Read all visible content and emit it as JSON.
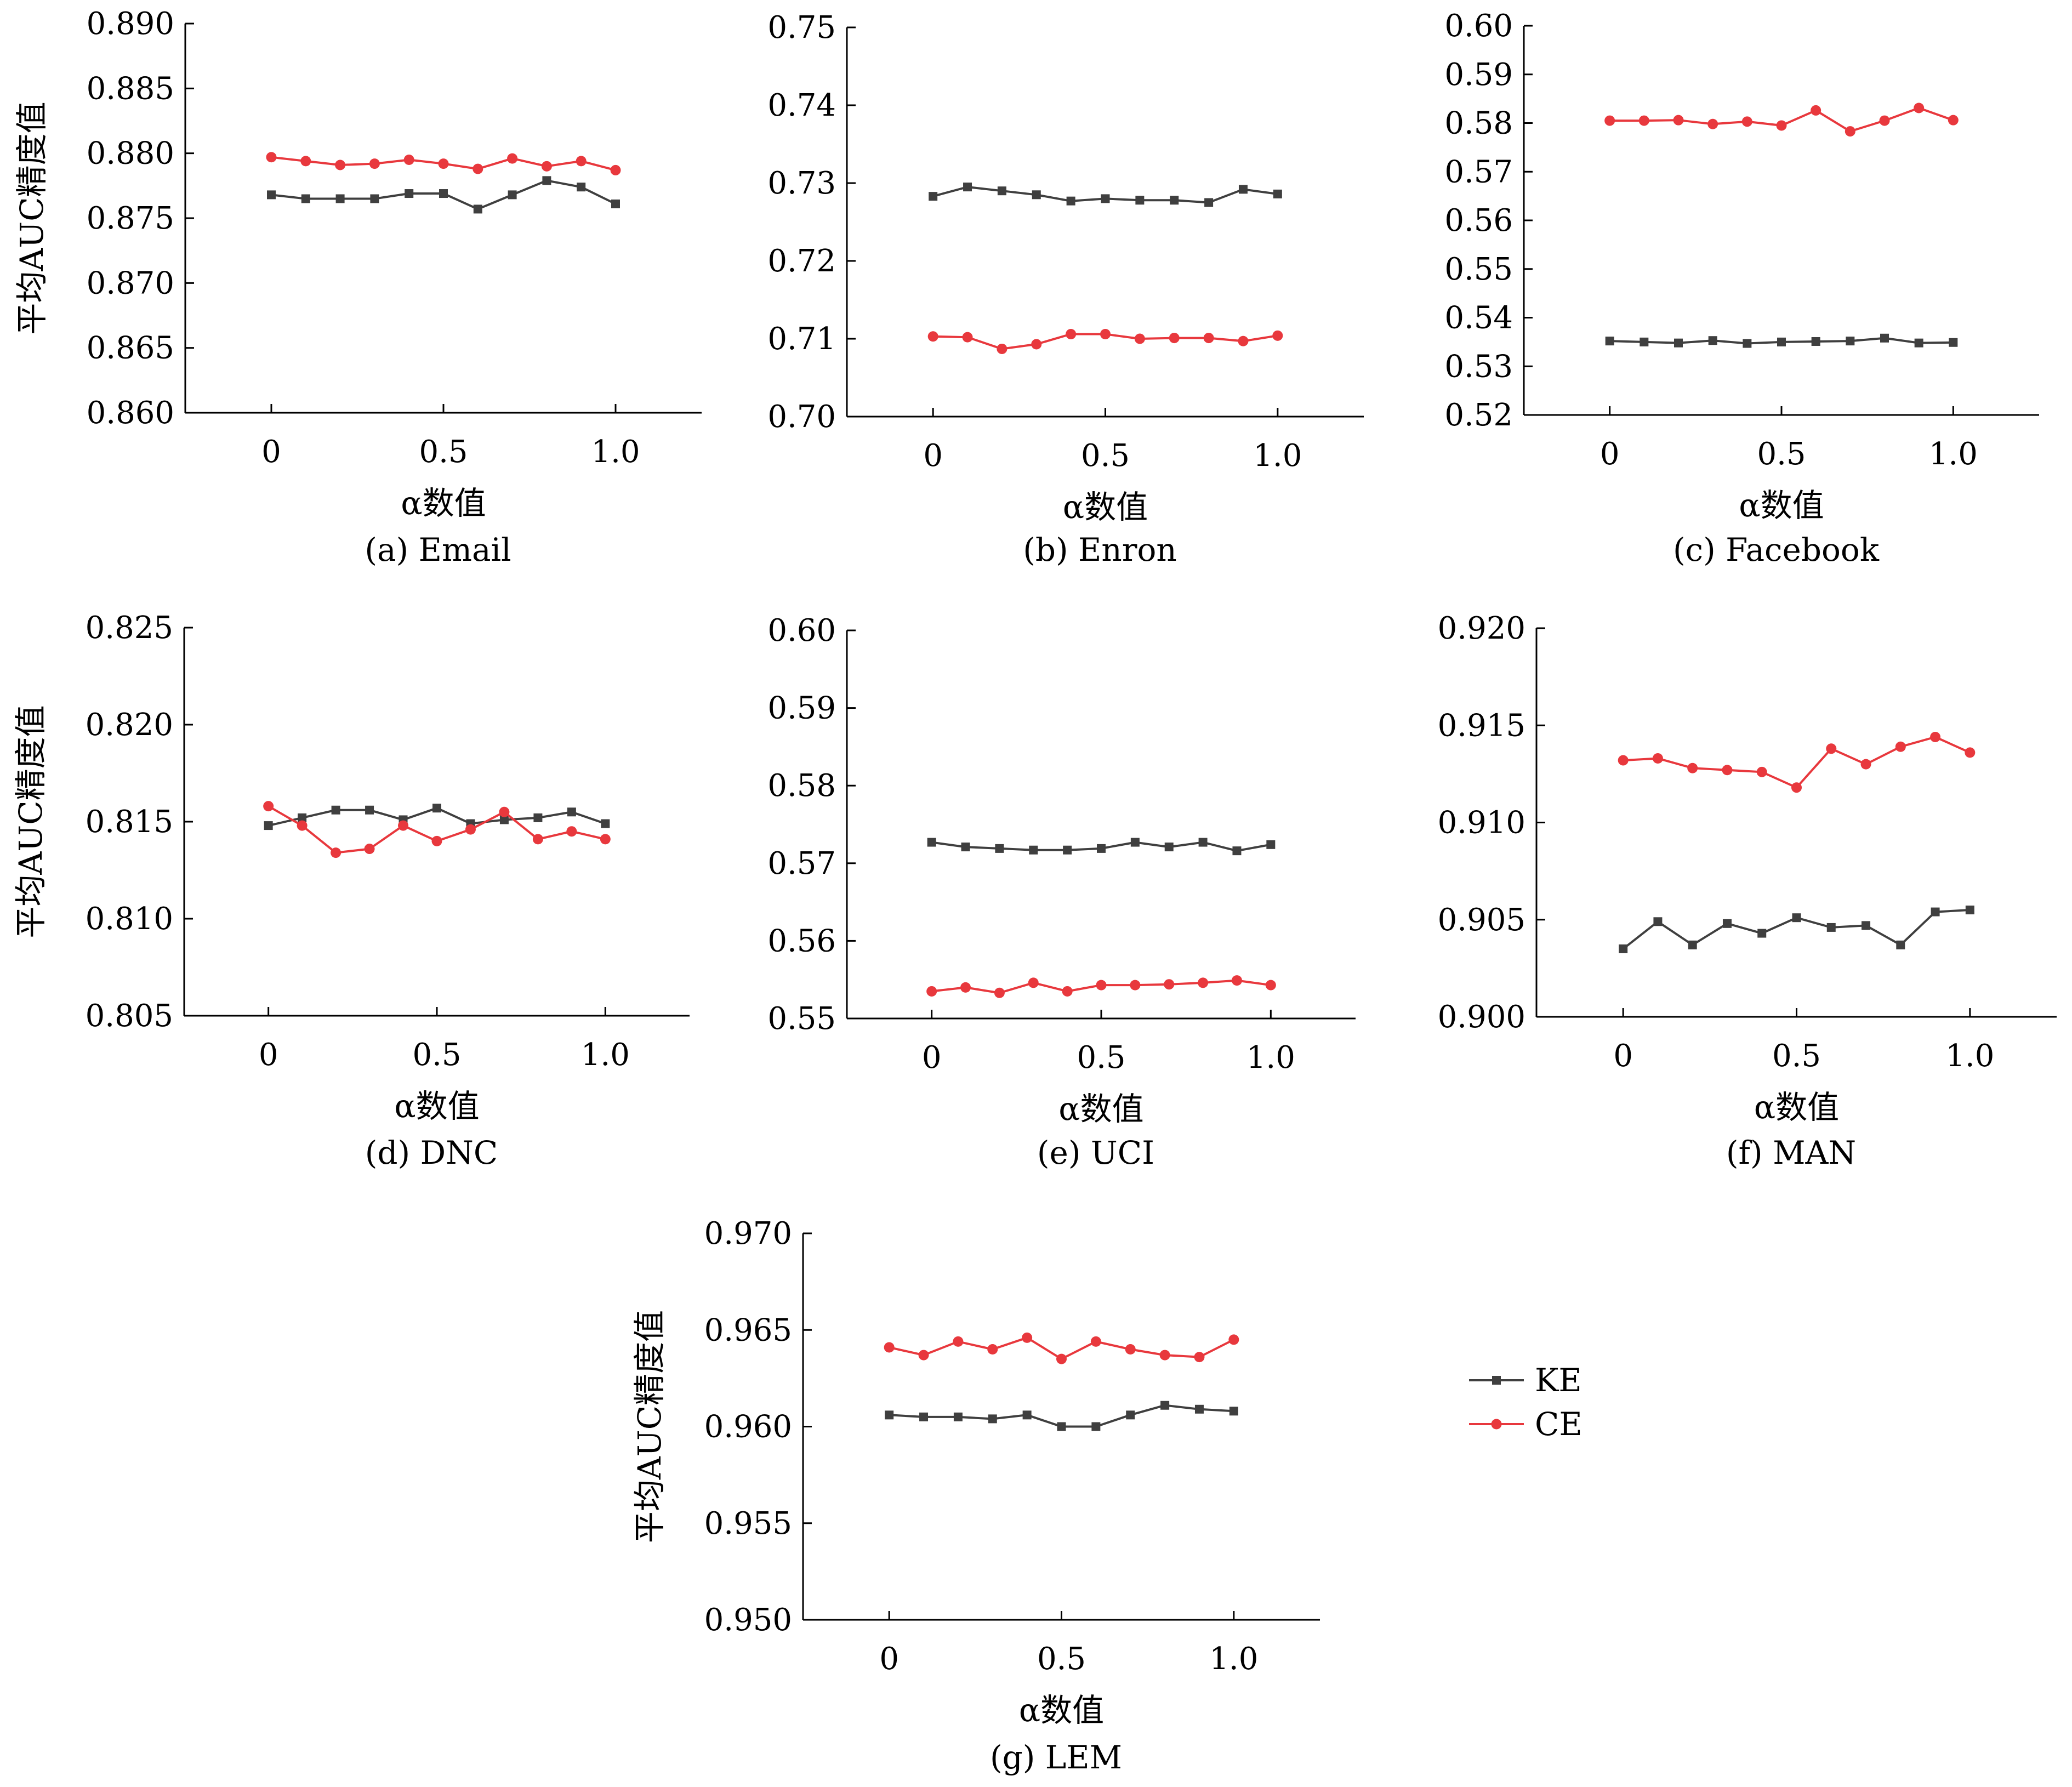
{
  "colors": {
    "KE": "#3f3f3f",
    "CE": "#e8383d",
    "axis": "#000000"
  },
  "legend": [
    {
      "name": "KE",
      "marker": "square"
    },
    {
      "name": "CE",
      "marker": "circle"
    }
  ],
  "chart_data": [
    {
      "type": "line",
      "caption": "(a) Email",
      "xlabel": "α数值",
      "ylabel": "平均AUC精度值",
      "xlim": [
        -0.25,
        1.25
      ],
      "ylim": [
        0.86,
        0.89
      ],
      "xticks": [
        "0",
        "0.5",
        "1.0"
      ],
      "yticks": [
        "0.860",
        "0.865",
        "0.870",
        "0.875",
        "0.880",
        "0.885",
        "0.890"
      ],
      "x": [
        0,
        0.1,
        0.2,
        0.3,
        0.4,
        0.5,
        0.6,
        0.7,
        0.8,
        0.9,
        1.0
      ],
      "series": [
        {
          "name": "KE",
          "values": [
            0.8768,
            0.8765,
            0.8765,
            0.8765,
            0.8769,
            0.8769,
            0.8757,
            0.8768,
            0.8779,
            0.8774,
            0.8761
          ]
        },
        {
          "name": "CE",
          "values": [
            0.8797,
            0.8794,
            0.8791,
            0.8792,
            0.8795,
            0.8792,
            0.8788,
            0.8796,
            0.879,
            0.8794,
            0.8787
          ]
        }
      ]
    },
    {
      "type": "line",
      "caption": "(b) Enron",
      "xlabel": "α数值",
      "ylabel": "",
      "xlim": [
        -0.25,
        1.25
      ],
      "ylim": [
        0.7,
        0.75
      ],
      "xticks": [
        "0",
        "0.5",
        "1.0"
      ],
      "yticks": [
        "0.70",
        "0.71",
        "0.72",
        "0.73",
        "0.74",
        "0.75"
      ],
      "x": [
        0,
        0.1,
        0.2,
        0.3,
        0.4,
        0.5,
        0.6,
        0.7,
        0.8,
        0.9,
        1.0
      ],
      "series": [
        {
          "name": "KE",
          "values": [
            0.7283,
            0.7295,
            0.729,
            0.7285,
            0.7277,
            0.728,
            0.7278,
            0.7278,
            0.7275,
            0.7292,
            0.7286
          ]
        },
        {
          "name": "CE",
          "values": [
            0.7103,
            0.7102,
            0.7087,
            0.7093,
            0.7106,
            0.7106,
            0.71,
            0.7101,
            0.7101,
            0.7097,
            0.7104
          ]
        }
      ]
    },
    {
      "type": "line",
      "caption": "(c) Facebook",
      "xlabel": "α数值",
      "ylabel": "",
      "xlim": [
        -0.25,
        1.25
      ],
      "ylim": [
        0.52,
        0.6
      ],
      "xticks": [
        "0",
        "0.5",
        "1.0"
      ],
      "yticks": [
        "0.52",
        "0.53",
        "0.54",
        "0.55",
        "0.56",
        "0.57",
        "0.58",
        "0.59",
        "0.60"
      ],
      "x": [
        0,
        0.1,
        0.2,
        0.3,
        0.4,
        0.5,
        0.6,
        0.7,
        0.8,
        0.9,
        1.0
      ],
      "series": [
        {
          "name": "KE",
          "values": [
            0.5352,
            0.535,
            0.5348,
            0.5353,
            0.5347,
            0.535,
            0.5351,
            0.5352,
            0.5358,
            0.5348,
            0.5349
          ]
        },
        {
          "name": "CE",
          "values": [
            0.5805,
            0.5805,
            0.5806,
            0.5798,
            0.5803,
            0.5795,
            0.5826,
            0.5783,
            0.5805,
            0.5831,
            0.5806
          ]
        }
      ]
    },
    {
      "type": "line",
      "caption": "(d) DNC",
      "xlabel": "α数值",
      "ylabel": "平均AUC精度值",
      "xlim": [
        -0.25,
        1.25
      ],
      "ylim": [
        0.805,
        0.825
      ],
      "xticks": [
        "0",
        "0.5",
        "1.0"
      ],
      "yticks": [
        "0.805",
        "0.810",
        "0.815",
        "0.820",
        "0.825"
      ],
      "x": [
        0,
        0.1,
        0.2,
        0.3,
        0.4,
        0.5,
        0.6,
        0.7,
        0.8,
        0.9,
        1.0
      ],
      "series": [
        {
          "name": "KE",
          "values": [
            0.8148,
            0.8152,
            0.8156,
            0.8156,
            0.8151,
            0.8157,
            0.8149,
            0.8151,
            0.8152,
            0.8155,
            0.8149
          ]
        },
        {
          "name": "CE",
          "values": [
            0.8158,
            0.8148,
            0.8134,
            0.8136,
            0.8148,
            0.814,
            0.8146,
            0.8155,
            0.8141,
            0.8145,
            0.8141
          ]
        }
      ]
    },
    {
      "type": "line",
      "caption": "(e) UCI",
      "xlabel": "α数值",
      "ylabel": "",
      "xlim": [
        -0.25,
        1.25
      ],
      "ylim": [
        0.55,
        0.6
      ],
      "xticks": [
        "0",
        "0.5",
        "1.0"
      ],
      "yticks": [
        "0.55",
        "0.56",
        "0.57",
        "0.58",
        "0.59",
        "0.60"
      ],
      "x": [
        0,
        0.1,
        0.2,
        0.3,
        0.4,
        0.5,
        0.6,
        0.7,
        0.8,
        0.9,
        1.0
      ],
      "series": [
        {
          "name": "KE",
          "values": [
            0.5727,
            0.5721,
            0.5719,
            0.5717,
            0.5717,
            0.5719,
            0.5727,
            0.5721,
            0.5727,
            0.5716,
            0.5724
          ]
        },
        {
          "name": "CE",
          "values": [
            0.5535,
            0.554,
            0.5533,
            0.5546,
            0.5535,
            0.5543,
            0.5543,
            0.5544,
            0.5546,
            0.5549,
            0.5543
          ]
        }
      ]
    },
    {
      "type": "line",
      "caption": "(f) MAN",
      "xlabel": "α数值",
      "ylabel": "",
      "xlim": [
        -0.25,
        1.25
      ],
      "ylim": [
        0.9,
        0.92
      ],
      "xticks": [
        "0",
        "0.5",
        "1.0"
      ],
      "yticks": [
        "0.900",
        "0.905",
        "0.910",
        "0.915",
        "0.920"
      ],
      "x": [
        0,
        0.1,
        0.2,
        0.3,
        0.4,
        0.5,
        0.6,
        0.7,
        0.8,
        0.9,
        1.0
      ],
      "series": [
        {
          "name": "KE",
          "values": [
            0.9035,
            0.9049,
            0.9037,
            0.9048,
            0.9043,
            0.9051,
            0.9046,
            0.9047,
            0.9037,
            0.9054,
            0.9055
          ]
        },
        {
          "name": "CE",
          "values": [
            0.9132,
            0.9133,
            0.9128,
            0.9127,
            0.9126,
            0.9118,
            0.9138,
            0.913,
            0.9139,
            0.9144,
            0.9136
          ]
        }
      ]
    },
    {
      "type": "line",
      "caption": "(g) LEM",
      "xlabel": "α数值",
      "ylabel": "平均AUC精度值",
      "xlim": [
        -0.25,
        1.25
      ],
      "ylim": [
        0.95,
        0.97
      ],
      "xticks": [
        "0",
        "0.5",
        "1.0"
      ],
      "yticks": [
        "0.950",
        "0.955",
        "0.960",
        "0.965",
        "0.970"
      ],
      "x": [
        0,
        0.1,
        0.2,
        0.3,
        0.4,
        0.5,
        0.6,
        0.7,
        0.8,
        0.9,
        1.0
      ],
      "series": [
        {
          "name": "KE",
          "values": [
            0.9606,
            0.9605,
            0.9605,
            0.9604,
            0.9606,
            0.96,
            0.96,
            0.9606,
            0.9611,
            0.9609,
            0.9608
          ]
        },
        {
          "name": "CE",
          "values": [
            0.9641,
            0.9637,
            0.9644,
            0.964,
            0.9646,
            0.9635,
            0.9644,
            0.964,
            0.9637,
            0.9636,
            0.9645
          ]
        }
      ]
    }
  ]
}
